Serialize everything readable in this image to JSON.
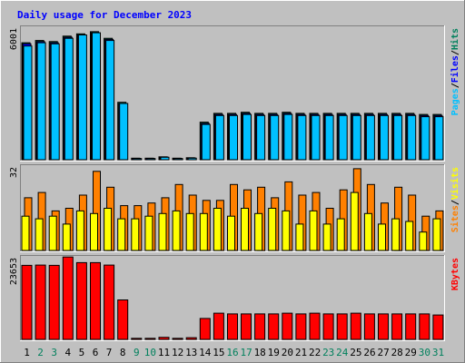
{
  "chart_data": {
    "type": "bar",
    "title": "Daily usage for December 2023",
    "days": [
      "1",
      "2",
      "3",
      "4",
      "5",
      "6",
      "7",
      "8",
      "9",
      "10",
      "11",
      "12",
      "13",
      "14",
      "15",
      "16",
      "17",
      "18",
      "19",
      "20",
      "21",
      "22",
      "23",
      "24",
      "25",
      "26",
      "27",
      "28",
      "29",
      "30",
      "31"
    ],
    "weekend_days": [
      2,
      3,
      9,
      10,
      16,
      17,
      23,
      24,
      30,
      31
    ],
    "panels": [
      {
        "id": "hits_files_pages",
        "max_label": "6001",
        "max": 6001,
        "legend": [
          "Pages",
          "/",
          "Files",
          "/",
          "Hits"
        ],
        "series": [
          {
            "name": "Hits",
            "color": "#00805c",
            "values": [
              5300,
              5400,
              5350,
              5600,
              5700,
              5800,
              5500,
              2600,
              70,
              70,
              130,
              70,
              90,
              1700,
              2100,
              2100,
              2150,
              2100,
              2100,
              2150,
              2100,
              2100,
              2100,
              2100,
              2100,
              2100,
              2100,
              2100,
              2100,
              2050,
              2050
            ]
          },
          {
            "name": "Files",
            "color": "#0000ff",
            "values": [
              5250,
              5350,
              5300,
              5550,
              5650,
              5750,
              5450,
              2550,
              60,
              60,
              120,
              60,
              80,
              1650,
              2050,
              2050,
              2100,
              2050,
              2050,
              2100,
              2050,
              2050,
              2050,
              2050,
              2050,
              2050,
              2050,
              2050,
              2050,
              2000,
              2000
            ]
          },
          {
            "name": "Pages",
            "color": "#00c0ff",
            "values": [
              5150,
              5300,
              5250,
              5500,
              5650,
              5750,
              5400,
              2550,
              50,
              50,
              110,
              50,
              70,
              1600,
              2000,
              2000,
              2050,
              2000,
              2000,
              2050,
              2000,
              2000,
              2000,
              2000,
              2000,
              2000,
              2000,
              2000,
              2000,
              1950,
              1950
            ]
          }
        ]
      },
      {
        "id": "visits_sites",
        "max_label": "32",
        "max": 32,
        "legend": [
          "Sites",
          "/",
          "Visits"
        ],
        "series": [
          {
            "name": "Visits",
            "color": "#ff8000",
            "values": [
              20,
              22,
              15,
              16,
              21,
              30,
              24,
              17,
              17,
              18,
              20,
              25,
              21,
              19,
              19,
              25,
              23,
              24,
              20,
              26,
              21,
              22,
              16,
              23,
              31,
              25,
              18,
              24,
              21,
              13,
              15
            ]
          },
          {
            "name": "Sites",
            "color": "#ffff00",
            "values": [
              13,
              12,
              13,
              10,
              15,
              14,
              16,
              12,
              12,
              13,
              14,
              15,
              14,
              14,
              16,
              13,
              16,
              14,
              16,
              15,
              10,
              15,
              10,
              12,
              22,
              14,
              10,
              12,
              11,
              7,
              12
            ]
          }
        ]
      },
      {
        "id": "kbytes",
        "max_label": "23653",
        "max": 23653,
        "legend": [
          "KBytes"
        ],
        "series": [
          {
            "name": "KBytes",
            "color": "#ff0000",
            "values": [
              21200,
              21300,
              21200,
              23600,
              22000,
              22000,
              21300,
              11300,
              300,
              300,
              600,
              300,
              500,
              6000,
              7500,
              7300,
              7300,
              7300,
              7300,
              7500,
              7300,
              7500,
              7300,
              7300,
              7500,
              7300,
              7300,
              7300,
              7300,
              7300,
              7000
            ]
          }
        ]
      }
    ]
  }
}
